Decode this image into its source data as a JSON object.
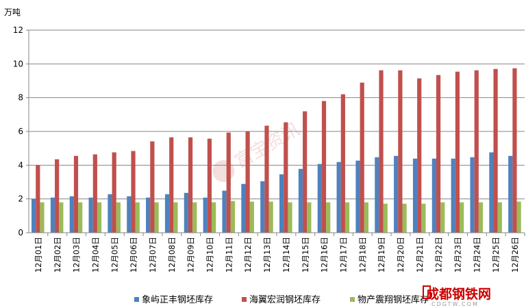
{
  "chart_data": {
    "type": "bar",
    "title": "",
    "ylabel": "万吨",
    "xlabel": "",
    "ylim": [
      0,
      12
    ],
    "yticks": [
      "0",
      "2",
      "4",
      "6",
      "8",
      "10",
      "12"
    ],
    "grid": true,
    "legend_position": "bottom",
    "categories": [
      "12月01日",
      "12月02日",
      "12月03日",
      "12月04日",
      "12月05日",
      "12月06日",
      "12月07日",
      "12月08日",
      "12月09日",
      "12月10日",
      "12月11日",
      "12月12日",
      "12月13日",
      "12月14日",
      "12月15日",
      "12月16日",
      "12月17日",
      "12月18日",
      "12月19日",
      "12月20日",
      "12月21日",
      "12月22日",
      "12月23日",
      "12月24日",
      "12月25日",
      "12月26日"
    ],
    "series": [
      {
        "name": "象屿正丰钢坯库存",
        "color": "#4f81bd",
        "values": [
          2.0,
          2.08,
          2.16,
          2.08,
          2.28,
          2.16,
          2.08,
          2.28,
          2.36,
          2.08,
          2.49,
          2.89,
          3.05,
          3.46,
          3.78,
          4.07,
          4.19,
          4.27,
          4.47,
          4.55,
          4.39,
          4.39,
          4.39,
          4.47,
          4.76,
          4.55
        ]
      },
      {
        "name": "海翼宏润钢坯库存",
        "color": "#c0504d",
        "values": [
          4.01,
          4.35,
          4.55,
          4.64,
          4.76,
          4.84,
          5.41,
          5.65,
          5.65,
          5.57,
          5.93,
          6.01,
          6.34,
          6.54,
          7.19,
          7.8,
          8.2,
          8.89,
          9.62,
          9.62,
          9.14,
          9.34,
          9.54,
          9.62,
          9.7,
          9.74
        ]
      },
      {
        "name": "物产震翔钢坯库存",
        "color": "#9bbb59",
        "values": [
          1.8,
          1.8,
          1.8,
          1.8,
          1.8,
          1.8,
          1.8,
          1.8,
          1.8,
          1.8,
          1.88,
          1.84,
          1.84,
          1.8,
          1.8,
          1.8,
          1.8,
          1.8,
          1.72,
          1.72,
          1.72,
          1.8,
          1.8,
          1.8,
          1.8,
          1.84
        ]
      }
    ]
  },
  "watermarks": {
    "center": "富宝资讯",
    "corner_logo": "成都钢铁网",
    "corner_url": "CDGTW.COM"
  }
}
